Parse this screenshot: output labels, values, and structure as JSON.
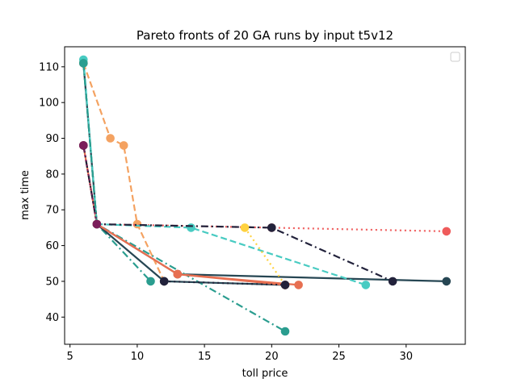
{
  "chart_data": {
    "type": "line",
    "title": "Pareto fronts of 20 GA runs by input t5v12",
    "xlabel": "toll price",
    "ylabel": "max time",
    "xlim": [
      4.6,
      34.4
    ],
    "ylim": [
      32.4,
      115.6
    ],
    "xticks": [
      5,
      10,
      15,
      20,
      25,
      30
    ],
    "yticks": [
      40,
      50,
      60,
      70,
      80,
      90,
      100,
      110
    ],
    "legend": {
      "location": "upper right",
      "entries": []
    },
    "grid": false,
    "series": [
      {
        "color": "#264653",
        "style": "solid",
        "points": [
          [
            6,
            111
          ],
          [
            7,
            66
          ],
          [
            13,
            52
          ],
          [
            33,
            50
          ]
        ]
      },
      {
        "color": "#2a9d8f",
        "style": "dashdot",
        "points": [
          [
            6,
            111
          ],
          [
            7,
            66
          ],
          [
            21,
            36
          ]
        ]
      },
      {
        "color": "#e76f51",
        "style": "solid",
        "points": [
          [
            6,
            88
          ],
          [
            7,
            66
          ],
          [
            13,
            52
          ],
          [
            22,
            49
          ]
        ]
      },
      {
        "color": "#f4a261",
        "style": "dashed",
        "points": [
          [
            6,
            111
          ],
          [
            8,
            90
          ],
          [
            9,
            88
          ],
          [
            10,
            66
          ],
          [
            12,
            50
          ]
        ]
      },
      {
        "color": "#ef5b5b",
        "style": "dotted",
        "points": [
          [
            6,
            88
          ],
          [
            7,
            66
          ],
          [
            20,
            65
          ],
          [
            33,
            64
          ]
        ]
      },
      {
        "color": "#48cbc2",
        "style": "dashed",
        "points": [
          [
            6,
            112
          ],
          [
            7,
            66
          ],
          [
            14,
            65
          ],
          [
            27,
            49
          ]
        ]
      },
      {
        "color": "#22223b",
        "style": "dashdot",
        "points": [
          [
            6,
            88
          ],
          [
            7,
            66
          ],
          [
            20,
            65
          ],
          [
            29,
            50
          ]
        ]
      },
      {
        "color": "#ffd23f",
        "style": "dotted",
        "points": [
          [
            18,
            65
          ],
          [
            21,
            49
          ]
        ]
      },
      {
        "color": "#2a9d8f",
        "style": "dashdot",
        "points": [
          [
            6,
            111
          ],
          [
            7,
            66
          ],
          [
            11,
            50
          ]
        ]
      },
      {
        "color": "#264653",
        "style": "solid",
        "points": [
          [
            7,
            66
          ],
          [
            12,
            50
          ],
          [
            21,
            49
          ]
        ]
      },
      {
        "color": "#e76f51",
        "style": "solid",
        "points": [
          [
            7,
            66
          ],
          [
            13,
            52
          ],
          [
            21,
            49
          ]
        ]
      },
      {
        "color": "#22223b",
        "style": "dotted",
        "points": [
          [
            12,
            50
          ],
          [
            21,
            49
          ]
        ]
      },
      {
        "color": "#7b1e5a",
        "style": "dotted",
        "points": [
          [
            6,
            88
          ],
          [
            7,
            66
          ]
        ]
      }
    ]
  }
}
